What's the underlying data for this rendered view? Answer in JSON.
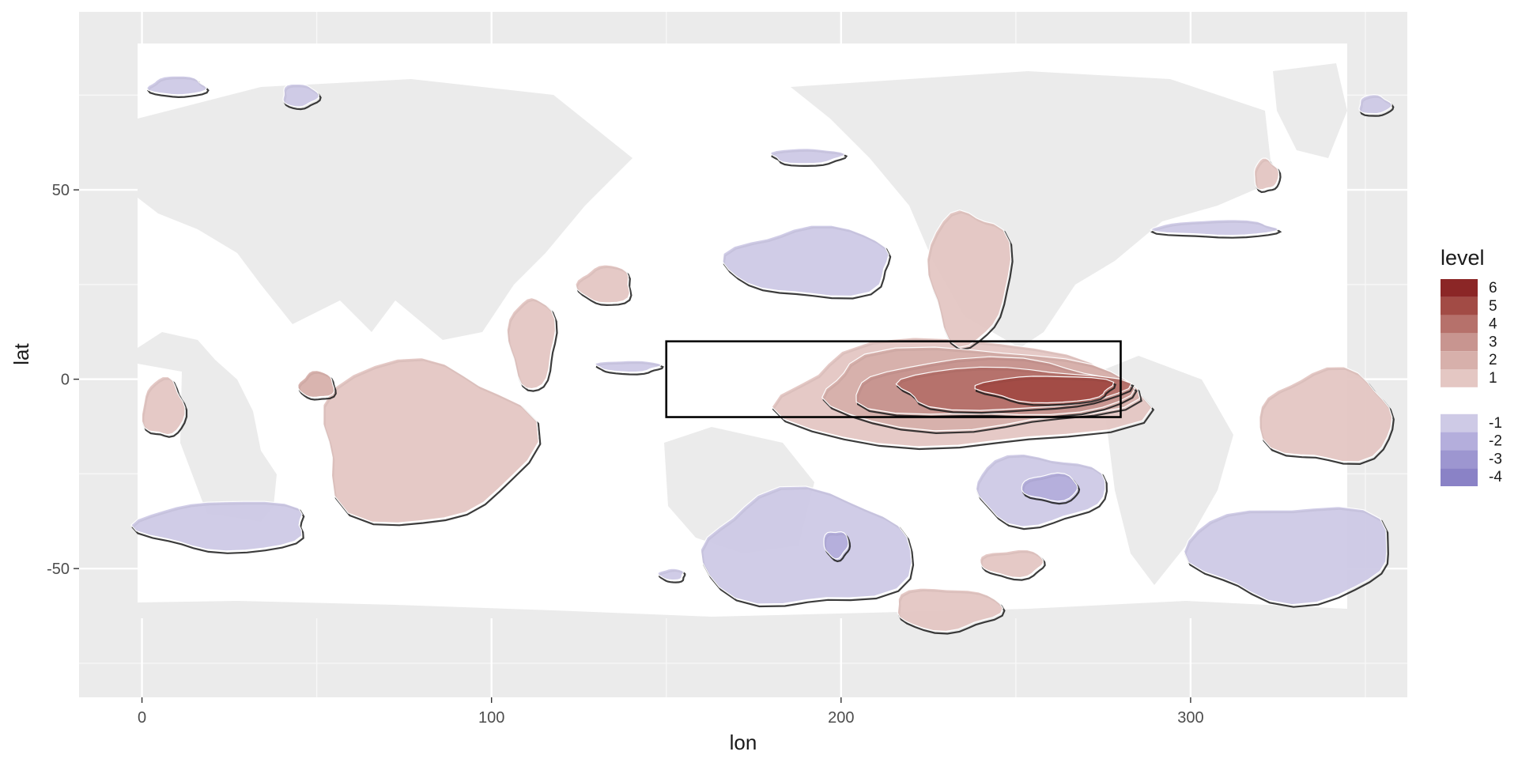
{
  "chart_data": {
    "type": "contour",
    "title": "",
    "xlabel": "lon",
    "ylabel": "lat",
    "xlim": [
      -18,
      362
    ],
    "ylim": [
      -84,
      97
    ],
    "x_ticks": [
      {
        "value": 0,
        "label": "0"
      },
      {
        "value": 100,
        "label": "100"
      },
      {
        "value": 200,
        "label": "200"
      },
      {
        "value": 300,
        "label": "300"
      }
    ],
    "y_ticks": [
      {
        "value": 50,
        "label": "50"
      },
      {
        "value": 0,
        "label": "0"
      },
      {
        "value": -50,
        "label": "-50"
      }
    ],
    "x_minor_ticks": [
      50,
      150,
      250,
      350
    ],
    "y_minor_ticks": [
      75,
      25,
      -25,
      -75
    ],
    "grid": true,
    "panel_background": "#EBEBEB",
    "ocean_data_extent": {
      "lon": [
        0,
        357.5
      ],
      "lat": [
        -77.5,
        88
      ]
    },
    "highlight_box": {
      "lon": [
        150,
        280
      ],
      "lat": [
        -10,
        10
      ],
      "color": "#000000"
    },
    "legend": {
      "title": "level",
      "position": "right",
      "entries": [
        {
          "label": "6",
          "color": "#8B2626"
        },
        {
          "label": "5",
          "color": "#A24B45"
        },
        {
          "label": "4",
          "color": "#B6716B"
        },
        {
          "label": "3",
          "color": "#C89590"
        },
        {
          "label": "2",
          "color": "#D7B0AB"
        },
        {
          "label": "1",
          "color": "#E4C7C3"
        },
        {
          "label": "-1",
          "color": "#CECAE6"
        },
        {
          "label": "-2",
          "color": "#B4AEDC"
        },
        {
          "label": "-3",
          "color": "#9D96D0"
        },
        {
          "label": "-4",
          "color": "#8A82C6"
        }
      ]
    },
    "regions": [
      {
        "level": 1,
        "lon": [
          0,
          12
        ],
        "lat": [
          -15,
          0
        ]
      },
      {
        "level": 1,
        "lon": [
          50,
          110
        ],
        "lat": [
          -38,
          5
        ]
      },
      {
        "level": 2,
        "lon": [
          45,
          55
        ],
        "lat": [
          -5,
          2
        ]
      },
      {
        "level": 1,
        "lon": [
          105,
          118
        ],
        "lat": [
          -2,
          22
        ]
      },
      {
        "level": 1,
        "lon": [
          125,
          140
        ],
        "lat": [
          20,
          30
        ]
      },
      {
        "level": 1,
        "lon": [
          182,
          285
        ],
        "lat": [
          -18,
          10
        ]
      },
      {
        "level": 2,
        "lon": [
          193,
          282
        ],
        "lat": [
          -13,
          8
        ]
      },
      {
        "level": 3,
        "lon": [
          203,
          282
        ],
        "lat": [
          -10,
          5
        ]
      },
      {
        "level": 4,
        "lon": [
          215,
          280
        ],
        "lat": [
          -8,
          3
        ]
      },
      {
        "level": 5,
        "lon": [
          240,
          278
        ],
        "lat": [
          -6,
          1
        ]
      },
      {
        "level": 1,
        "lon": [
          215,
          245
        ],
        "lat": [
          -66,
          -55
        ]
      },
      {
        "level": 1,
        "lon": [
          240,
          258
        ],
        "lat": [
          -52,
          -45
        ]
      },
      {
        "level": 1,
        "lon": [
          320,
          358
        ],
        "lat": [
          -22,
          2
        ]
      },
      {
        "level": 1,
        "lon": [
          318,
          325
        ],
        "lat": [
          50,
          58
        ]
      },
      {
        "level": 1,
        "lon": [
          225,
          248
        ],
        "lat": [
          10,
          45
        ]
      },
      {
        "level": -1,
        "lon": [
          0,
          48
        ],
        "lat": [
          -45,
          -32
        ]
      },
      {
        "level": -1,
        "lon": [
          2,
          18
        ],
        "lat": [
          75,
          80
        ]
      },
      {
        "level": -1,
        "lon": [
          40,
          50
        ],
        "lat": [
          72,
          78
        ]
      },
      {
        "level": -1,
        "lon": [
          130,
          148
        ],
        "lat": [
          2,
          5
        ]
      },
      {
        "level": -1,
        "lon": [
          168,
          215
        ],
        "lat": [
          22,
          40
        ]
      },
      {
        "level": -1,
        "lon": [
          160,
          220
        ],
        "lat": [
          -60,
          -30
        ]
      },
      {
        "level": -2,
        "lon": [
          195,
          202
        ],
        "lat": [
          -47,
          -40
        ]
      },
      {
        "level": -1,
        "lon": [
          238,
          275
        ],
        "lat": [
          -38,
          -20
        ]
      },
      {
        "level": -2,
        "lon": [
          252,
          268
        ],
        "lat": [
          -32,
          -25
        ]
      },
      {
        "level": -1,
        "lon": [
          300,
          358
        ],
        "lat": [
          -58,
          -33
        ]
      },
      {
        "level": -1,
        "lon": [
          290,
          325
        ],
        "lat": [
          38,
          42
        ]
      },
      {
        "level": -1,
        "lon": [
          348,
          357
        ],
        "lat": [
          70,
          75
        ]
      },
      {
        "level": -1,
        "lon": [
          180,
          200
        ],
        "lat": [
          57,
          61
        ]
      },
      {
        "level": -1,
        "lon": [
          148,
          155
        ],
        "lat": [
          -53,
          -50
        ]
      }
    ]
  }
}
